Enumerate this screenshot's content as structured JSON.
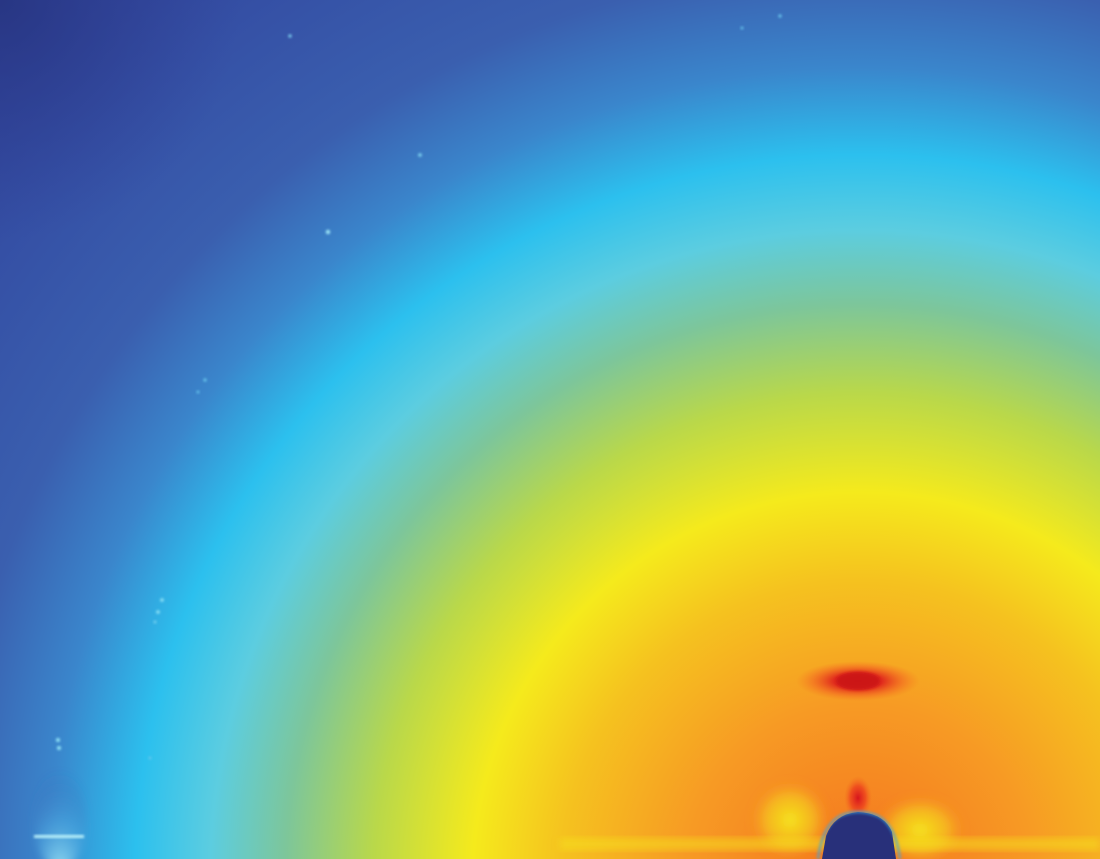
{
  "image": {
    "kind": "x-ray scattering detector pattern",
    "colormap": "jet",
    "colors": {
      "background_far": "#2e3d93",
      "blue": "#3a55aa",
      "light_blue": "#2cc0ee",
      "cyan": "#5ccde0",
      "teal_green": "#7dc69a",
      "yellow_green": "#b9d84a",
      "yellow": "#f5ea1c",
      "orange": "#f79a24",
      "deep_orange": "#f4721f",
      "red": "#d7151d",
      "beamstop": "#28307a"
    },
    "features": [
      "concentric-intensity-rings",
      "intense-red-peak",
      "beamstop-shadow",
      "bright-streaks",
      "specular-glow",
      "diffraction-spots"
    ]
  }
}
